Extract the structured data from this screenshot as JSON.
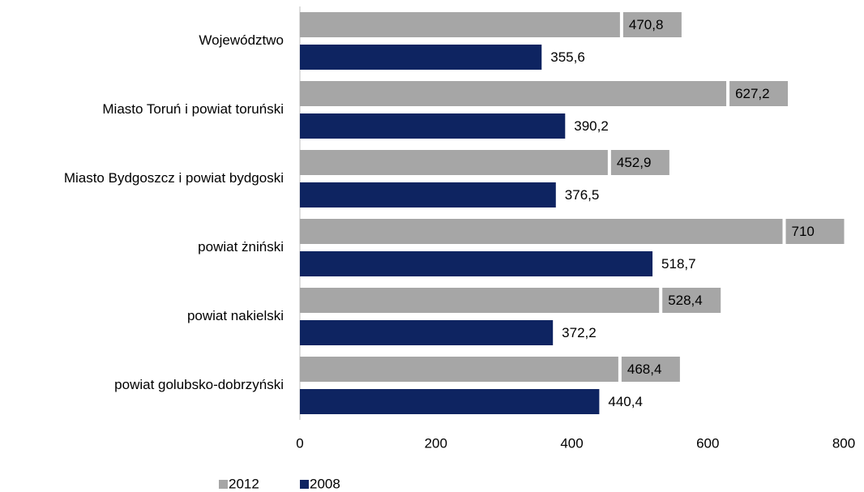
{
  "chart_data": {
    "type": "bar",
    "orientation": "horizontal",
    "categories": [
      "Województwo",
      "Miasto Toruń i powiat toruński",
      "Miasto Bydgoszcz i powiat bydgoski",
      "powiat żniński",
      "powiat nakielski",
      "powiat golubsko-dobrzyński"
    ],
    "series": [
      {
        "name": "2012",
        "color": "#a6a6a6",
        "values": [
          470.8,
          627.2,
          452.9,
          710,
          528.4,
          468.4
        ],
        "value_labels": [
          "470,8",
          "627,2",
          "452,9",
          "710",
          "528,4",
          "468,4"
        ]
      },
      {
        "name": "2008",
        "color": "#0e2461",
        "values": [
          355.6,
          390.2,
          376.5,
          518.7,
          372.2,
          440.4
        ],
        "value_labels": [
          "355,6",
          "390,2",
          "376,5",
          "518,7",
          "372,2",
          "440,4"
        ]
      }
    ],
    "xlim": [
      0,
      800
    ],
    "xticks": [
      0,
      200,
      400,
      600,
      800
    ],
    "grid": false,
    "legend": "bottom"
  }
}
